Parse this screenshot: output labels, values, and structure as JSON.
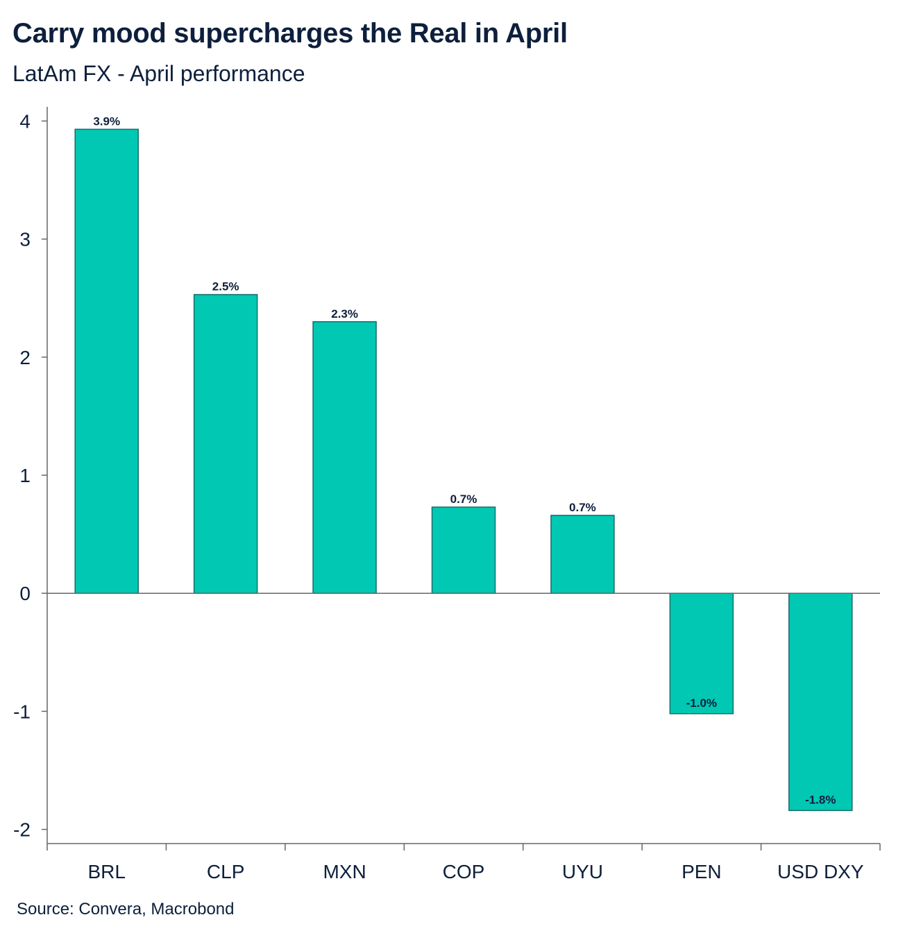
{
  "title": "Carry mood supercharges the Real in April",
  "subtitle": "LatAm FX - April performance",
  "source": "Source: Convera, Macrobond",
  "colors": {
    "bar_fill": "#00c8b3",
    "bar_stroke": "#1a6b6b",
    "axis": "#666666",
    "text": "#0d1f3c"
  },
  "chart_data": {
    "type": "bar",
    "title": "Carry mood supercharges the Real in April",
    "subtitle": "LatAm FX - April performance",
    "categories": [
      "BRL",
      "CLP",
      "MXN",
      "COP",
      "UYU",
      "PEN",
      "USD DXY"
    ],
    "values": [
      3.93,
      2.53,
      2.3,
      0.73,
      0.66,
      -1.02,
      -1.84
    ],
    "data_labels": [
      "3.9%",
      "2.5%",
      "2.3%",
      "0.7%",
      "0.7%",
      "-1.0%",
      "-1.8%"
    ],
    "ylim": [
      -2.12,
      4.12
    ],
    "yticks": [
      -2,
      -1,
      0,
      1,
      2,
      3,
      4
    ],
    "ytick_labels": [
      "-2",
      "-1",
      "0",
      "1",
      "2",
      "3",
      "4"
    ],
    "grid": false,
    "legend": "none"
  }
}
